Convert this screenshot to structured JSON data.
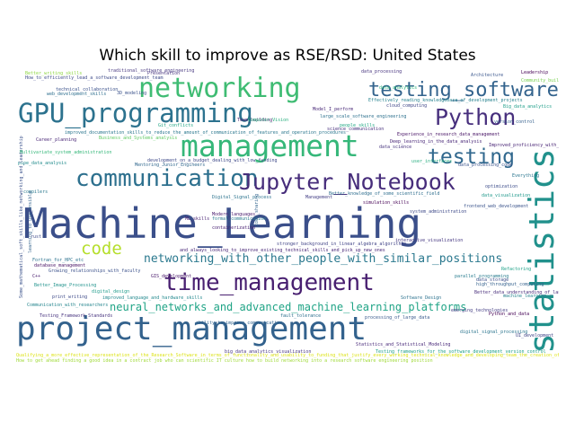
{
  "title": "Which skill to improve as RSE/RSD: United States",
  "words": [
    {
      "text": "Machine_Learning",
      "color": "#3b4f8a"
    },
    {
      "text": "project_management",
      "color": "#33628d"
    },
    {
      "text": "management",
      "color": "#35b779"
    },
    {
      "text": "networking",
      "color": "#3fbc73"
    },
    {
      "text": "GPU_programming",
      "color": "#2c728e"
    },
    {
      "text": "communication",
      "color": "#2d708e"
    },
    {
      "text": "Jupyter_Notebook",
      "color": "#472d7b"
    },
    {
      "text": "time_management",
      "color": "#481f70"
    },
    {
      "text": "testing_software",
      "color": "#33638d"
    },
    {
      "text": "testing",
      "color": "#31688e"
    },
    {
      "text": "Python",
      "color": "#472f7d"
    },
    {
      "text": "statistics",
      "color": "#21918c"
    },
    {
      "text": "code",
      "color": "#b5de2b"
    },
    {
      "text": "networking_with_other_people_with_similar_positions",
      "color": "#2a788e"
    },
    {
      "text": "neural_networks_and_advanced_machine_learning_platforms",
      "color": "#20a486"
    },
    {
      "text": "traditional_software_engineering",
      "color": "#4a3b82"
    },
    {
      "text": "How_to_efficiently_lead_a_software_development_team",
      "color": "#3e4a89"
    },
    {
      "text": "Better_writing_skills",
      "color": "#8fd744"
    },
    {
      "text": "technical_collaboration",
      "color": "#3b518b"
    },
    {
      "text": "web_development_skills",
      "color": "#2e6f8e"
    },
    {
      "text": "improved_documentation_skills_to_reduce_the_amount_of_communication_of_features_and_operation_procedures",
      "color": "#2a768e"
    },
    {
      "text": "Career_planning",
      "color": "#482576"
    },
    {
      "text": "Business_and_Systems_analysis",
      "color": "#5ec962"
    },
    {
      "text": "data_processing",
      "color": "#46337e"
    },
    {
      "text": "Effectively_reading_knowledgebase_of_development_projects",
      "color": "#26828e"
    },
    {
      "text": "cloud_computing",
      "color": "#3f4788"
    },
    {
      "text": "large_scale_software_engineering",
      "color": "#2d718e"
    },
    {
      "text": "Model_I_perform",
      "color": "#482878"
    },
    {
      "text": "Team_building",
      "color": "#481b6d"
    },
    {
      "text": "Leadership",
      "color": "#440154"
    },
    {
      "text": "Architecture",
      "color": "#39568c"
    },
    {
      "text": "Community_building",
      "color": "#7ad151"
    },
    {
      "text": "Big_data_analytics",
      "color": "#1f9e89"
    },
    {
      "text": "people_skills",
      "color": "#22a884"
    },
    {
      "text": "Presentation",
      "color": "#46337e"
    },
    {
      "text": "3D_modeling",
      "color": "#3b528b"
    },
    {
      "text": "Improved_proficiency_with_Python",
      "color": "#482475"
    },
    {
      "text": "data_visualization",
      "color": "#1f988b"
    },
    {
      "text": "frontend_web_development",
      "color": "#3a538b"
    },
    {
      "text": "interactive_visualization",
      "color": "#453781"
    },
    {
      "text": "stronger_background_in_linear_algebra_algorithms",
      "color": "#414487"
    },
    {
      "text": "and_always_looking_to_improve_existing_technical_skills_and_pick_up_new_ones",
      "color": "#482677"
    },
    {
      "text": "development_on_a_budget_dealing_with_low_funding",
      "color": "#3e4989"
    },
    {
      "text": "Mentoring_Junior_Engineers",
      "color": "#31688e"
    },
    {
      "text": "Digital_Signal_process",
      "color": "#2c738e"
    },
    {
      "text": "Modern_languages",
      "color": "#481a6c"
    },
    {
      "text": "formal_communication",
      "color": "#297b8e"
    },
    {
      "text": "containerization",
      "color": "#482173"
    },
    {
      "text": "Management",
      "color": "#433e85"
    },
    {
      "text": "Better_knowledge_of_some_scientific_field",
      "color": "#2e6e8e"
    },
    {
      "text": "Computer_Vision",
      "color": "#29af7f"
    },
    {
      "text": "data_analytics",
      "color": "#2fb47c"
    },
    {
      "text": "data_storage",
      "color": "#3d4e8a"
    },
    {
      "text": "high_throughput_computing",
      "color": "#34618d"
    },
    {
      "text": "machine_learning",
      "color": "#25848e"
    },
    {
      "text": "Better_Image_Processing",
      "color": "#20928c"
    },
    {
      "text": "Growing_relationships_with_faculty",
      "color": "#3b518b"
    },
    {
      "text": "Communication_with_researchers",
      "color": "#25858e"
    },
    {
      "text": "Testing_Framework_Standards",
      "color": "#46327e"
    },
    {
      "text": "improved_language_and_hardware_skills",
      "color": "#23898e"
    },
    {
      "text": "digital_design",
      "color": "#1e9b8a"
    },
    {
      "text": "Software_Design",
      "color": "#2c728e"
    },
    {
      "text": "emerging_technologies",
      "color": "#433d84"
    },
    {
      "text": "Statistics_and_Statistical_Modeling",
      "color": "#482979"
    },
    {
      "text": "processing_of_large_data",
      "color": "#38598c"
    },
    {
      "text": "digital_signal_processing",
      "color": "#2b758e"
    },
    {
      "text": "big_data_analytics_visualization",
      "color": "#463480"
    },
    {
      "text": "ability_to_improve_communication",
      "color": "#32648e"
    },
    {
      "text": "fault_tolerance",
      "color": "#2d708e"
    },
    {
      "text": "Testing_frameworks_for_the_software_development_version_control",
      "color": "#1fa088"
    },
    {
      "text": "C++",
      "color": "#481c6e"
    },
    {
      "text": "Python_and_data",
      "color": "#440154"
    },
    {
      "text": "ML_skills",
      "color": "#482374"
    },
    {
      "text": "compilers",
      "color": "#2a788e"
    },
    {
      "text": "pipe_data_analysis",
      "color": "#228c8d"
    },
    {
      "text": "Fortran_for_HPC_etc",
      "color": "#2c728e"
    },
    {
      "text": "database_management",
      "color": "#471164"
    },
    {
      "text": "science_communication",
      "color": "#472f7d"
    },
    {
      "text": "Some_mathematical_soft_skills_like_networking_and_leadership",
      "color": "#3b528b"
    },
    {
      "text": "learning_to_use_ansible",
      "color": "#33638d"
    },
    {
      "text": "code_sharing",
      "color": "#32648e"
    },
    {
      "text": "user_interfaces",
      "color": "#28ae80"
    },
    {
      "text": "data_processing_code",
      "color": "#3a548c"
    },
    {
      "text": "Multivariate_system_administration",
      "color": "#35b779"
    },
    {
      "text": "system_administration",
      "color": "#3e4a89"
    },
    {
      "text": "simulation_skills",
      "color": "#440154"
    },
    {
      "text": "Everything",
      "color": "#2a768e"
    },
    {
      "text": "data_science",
      "color": "#46337e"
    },
    {
      "text": "Deep_learning_in_the_data_analysis",
      "color": "#482677"
    },
    {
      "text": "Experience_in_research_data_management",
      "color": "#471365"
    },
    {
      "text": "Qualifying_a_more_effective_representation_of_the_Research_Software_in_terms_of_functionality_and_usability_to_funding_that_justify_every_working_technical_knowledge_and_developing_team_the_creation_of_documentation_ensuring_quality_of_specifications",
      "color": "#dde318"
    },
    {
      "text": "How_to_get_ahead_finding_a_good_idea_in_a_contract_job_who_can_scientific_IT_culture_how_to_build_networking_into_a_research_software_engineering_position",
      "color": "#a0da39"
    },
    {
      "text": "rust",
      "color": "#3e4a89"
    },
    {
      "text": "Better_data_understanding_of_languages",
      "color": "#472c7a"
    },
    {
      "text": "UI_development",
      "color": "#414487"
    },
    {
      "text": "optimization",
      "color": "#3d4d8a"
    },
    {
      "text": "parallel_programming",
      "color": "#287c8e"
    },
    {
      "text": "GIS_development",
      "color": "#48186a"
    },
    {
      "text": "Git_conflicts",
      "color": "#21a685"
    },
    {
      "text": "Refactoring",
      "color": "#1fa188"
    },
    {
      "text": "print_writing",
      "color": "#3e4a89"
    },
    {
      "text": "version_control",
      "color": "#35608d"
    }
  ]
}
